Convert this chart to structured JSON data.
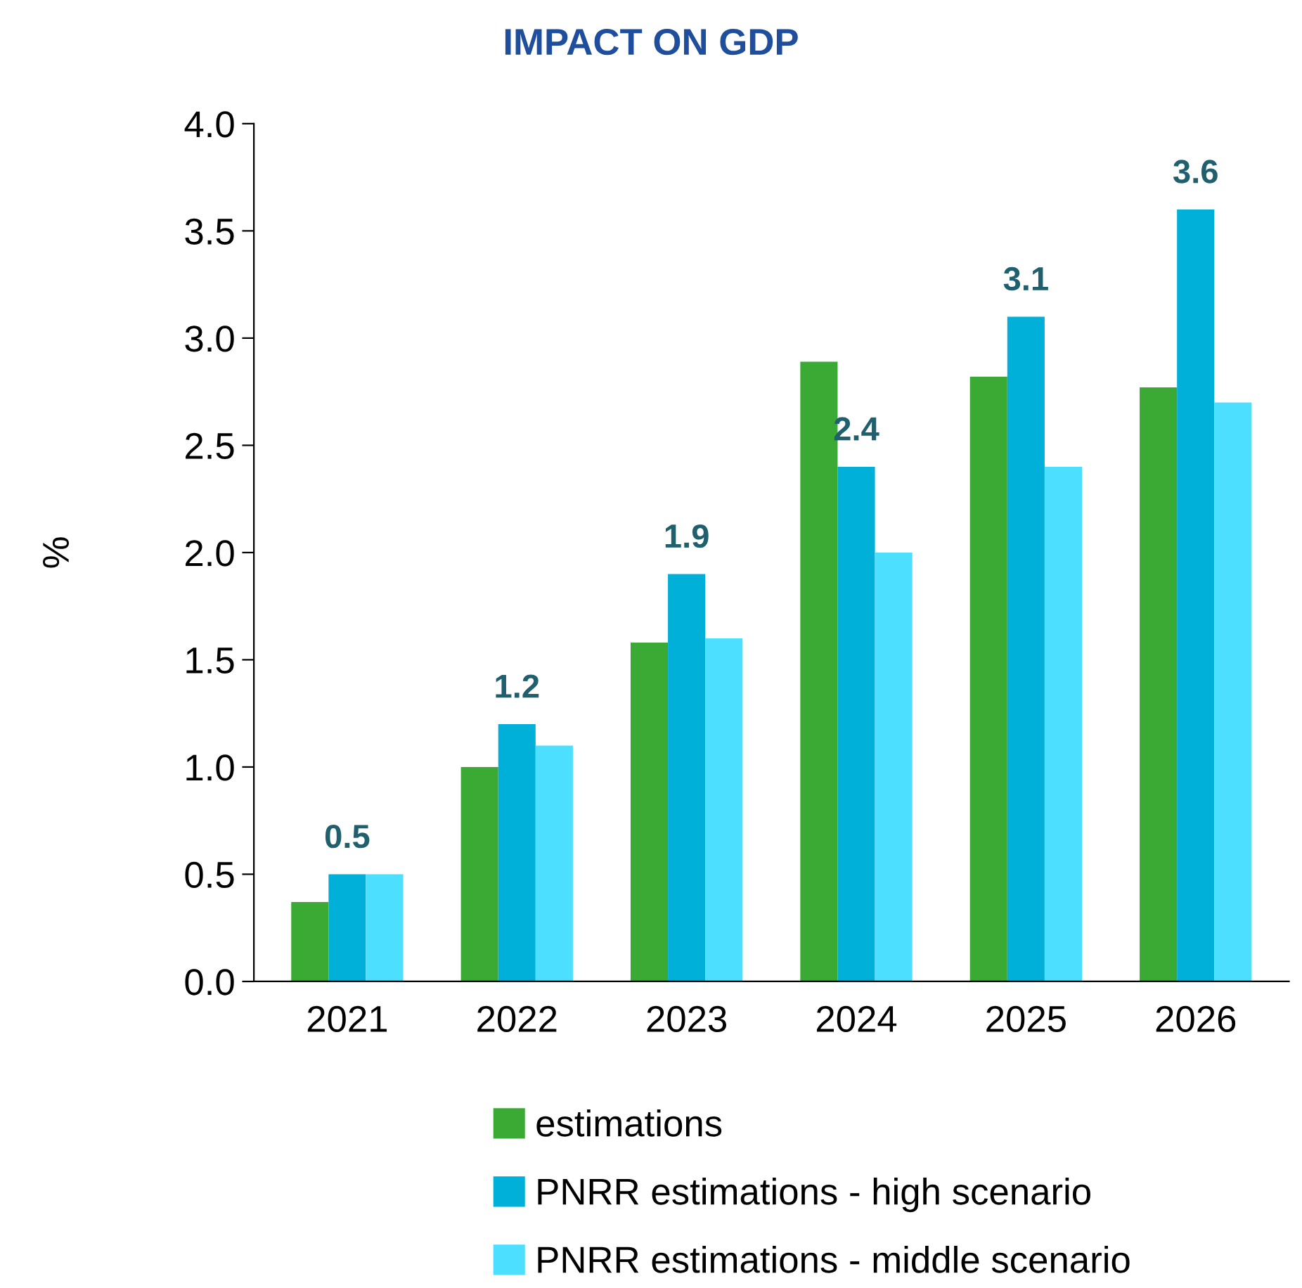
{
  "chart_data": {
    "type": "bar",
    "title": "IMPACT ON GDP",
    "ylabel": "%",
    "categories": [
      "2021",
      "2022",
      "2023",
      "2024",
      "2025",
      "2026"
    ],
    "series": [
      {
        "name": "estimations",
        "color": "#3aaa35",
        "values": [
          0.37,
          1.0,
          1.58,
          2.89,
          2.82,
          2.77
        ]
      },
      {
        "name": "PNRR estimations - high scenario",
        "color": "#00b0d8",
        "values": [
          0.5,
          1.2,
          1.9,
          2.4,
          3.1,
          3.6
        ],
        "value_labels": [
          "0.5",
          "1.2",
          "1.9",
          "2.4",
          "3.1",
          "3.6"
        ]
      },
      {
        "name": "PNRR estimations - middle scenario",
        "color": "#4ddfff",
        "values": [
          0.5,
          1.1,
          1.6,
          2.0,
          2.4,
          2.7
        ]
      }
    ],
    "ylim": [
      0,
      4.0
    ],
    "yticks": [
      {
        "value": 0,
        "label": "0.0"
      },
      {
        "value": 0.5,
        "label": "0.5"
      },
      {
        "value": 1.0,
        "label": "1.0"
      },
      {
        "value": 1.5,
        "label": "1.5"
      },
      {
        "value": 2.0,
        "label": "2.0"
      },
      {
        "value": 2.5,
        "label": "2.5"
      },
      {
        "value": 3.0,
        "label": "3.0"
      },
      {
        "value": 3.5,
        "label": "3.5"
      },
      {
        "value": 4.0,
        "label": "4.0"
      }
    ],
    "grid": false,
    "legend": "bottom"
  }
}
